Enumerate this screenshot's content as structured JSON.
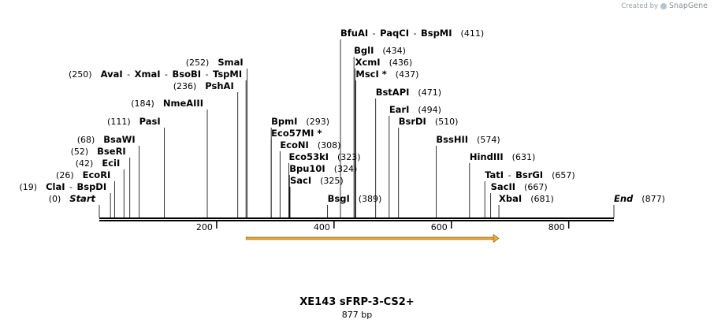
{
  "credit": {
    "prefix": "Created by",
    "brand": "SnapGene"
  },
  "sequence": {
    "name": "XE143 sFRP-3-CS2+",
    "length_label": "877 bp",
    "length": 877
  },
  "ruler": {
    "ticks": [
      200,
      400,
      600,
      800
    ]
  },
  "feature_arrow": {
    "start": 250,
    "end": 681,
    "color": "#f0a830"
  },
  "rows": [
    {
      "items": [
        {
          "name": "Start",
          "pos": 0,
          "italic": true
        }
      ],
      "pos_label": "(0)",
      "side": "left"
    },
    {
      "items": [
        {
          "name": "ClaI",
          "pos": 19
        },
        {
          "name": "BspDI",
          "pos": 19
        }
      ],
      "pos_label": "(19)",
      "side": "left"
    },
    {
      "items": [
        {
          "name": "EcoRI",
          "pos": 26
        }
      ],
      "pos_label": "(26)",
      "side": "left"
    },
    {
      "items": [
        {
          "name": "EciI",
          "pos": 42
        }
      ],
      "pos_label": "(42)",
      "side": "left"
    },
    {
      "items": [
        {
          "name": "BseRI",
          "pos": 52
        }
      ],
      "pos_label": "(52)",
      "side": "left"
    },
    {
      "items": [
        {
          "name": "BsaWI",
          "pos": 68
        }
      ],
      "pos_label": "(68)",
      "side": "left"
    },
    {
      "items": [
        {
          "name": "PasI",
          "pos": 111
        }
      ],
      "pos_label": "(111)",
      "side": "left"
    },
    {
      "items": [
        {
          "name": "NmeAIII",
          "pos": 184
        }
      ],
      "pos_label": "(184)",
      "side": "left"
    },
    {
      "items": [
        {
          "name": "PshAI",
          "pos": 236
        }
      ],
      "pos_label": "(236)",
      "side": "left"
    },
    {
      "items": [
        {
          "name": "AvaI",
          "pos": 250
        },
        {
          "name": "XmaI",
          "pos": 250
        },
        {
          "name": "BsoBI",
          "pos": 250
        },
        {
          "name": "TspMI",
          "pos": 250
        }
      ],
      "pos_label": "(250)",
      "side": "left"
    },
    {
      "items": [
        {
          "name": "SmaI",
          "pos": 252
        }
      ],
      "pos_label": "(252)",
      "side": "left"
    },
    {
      "items": [
        {
          "name": "BpmI",
          "pos": 293
        }
      ],
      "pos_label": "(293)",
      "side": "right"
    },
    {
      "items": [
        {
          "name": "Eco57MI *",
          "pos": 293
        }
      ],
      "pos_label": "",
      "side": "right"
    },
    {
      "items": [
        {
          "name": "EcoNI",
          "pos": 308
        }
      ],
      "pos_label": "(308)",
      "side": "right"
    },
    {
      "items": [
        {
          "name": "Eco53kI",
          "pos": 323
        }
      ],
      "pos_label": "(323)",
      "side": "right"
    },
    {
      "items": [
        {
          "name": "Bpu10I",
          "pos": 324
        }
      ],
      "pos_label": "(324)",
      "side": "right"
    },
    {
      "items": [
        {
          "name": "SacI",
          "pos": 325
        }
      ],
      "pos_label": "(325)",
      "side": "right"
    },
    {
      "items": [
        {
          "name": "BsgI",
          "pos": 389
        }
      ],
      "pos_label": "(389)",
      "side": "right"
    },
    {
      "items": [
        {
          "name": "BfuAI",
          "pos": 411
        },
        {
          "name": "PaqCI",
          "pos": 411
        },
        {
          "name": "BspMI",
          "pos": 411
        }
      ],
      "pos_label": "(411)",
      "side": "right"
    },
    {
      "items": [
        {
          "name": "BglI",
          "pos": 434
        }
      ],
      "pos_label": "(434)",
      "side": "right"
    },
    {
      "items": [
        {
          "name": "XcmI",
          "pos": 436
        }
      ],
      "pos_label": "(436)",
      "side": "right"
    },
    {
      "items": [
        {
          "name": "MscI *",
          "pos": 437
        }
      ],
      "pos_label": "(437)",
      "side": "right"
    },
    {
      "items": [
        {
          "name": "BstAPI",
          "pos": 471
        }
      ],
      "pos_label": "(471)",
      "side": "right"
    },
    {
      "items": [
        {
          "name": "EarI",
          "pos": 494
        }
      ],
      "pos_label": "(494)",
      "side": "right"
    },
    {
      "items": [
        {
          "name": "BsrDI",
          "pos": 510
        }
      ],
      "pos_label": "(510)",
      "side": "right"
    },
    {
      "items": [
        {
          "name": "BssHII",
          "pos": 574
        }
      ],
      "pos_label": "(574)",
      "side": "right"
    },
    {
      "items": [
        {
          "name": "HindIII",
          "pos": 631
        }
      ],
      "pos_label": "(631)",
      "side": "right"
    },
    {
      "items": [
        {
          "name": "TatI",
          "pos": 657
        },
        {
          "name": "BsrGI",
          "pos": 657
        }
      ],
      "pos_label": "(657)",
      "side": "right"
    },
    {
      "items": [
        {
          "name": "SacII",
          "pos": 667
        }
      ],
      "pos_label": "(667)",
      "side": "right"
    },
    {
      "items": [
        {
          "name": "XbaI",
          "pos": 681
        }
      ],
      "pos_label": "(681)",
      "side": "right"
    },
    {
      "items": [
        {
          "name": "End",
          "pos": 877,
          "italic": true
        }
      ],
      "pos_label": "(877)",
      "side": "right"
    }
  ]
}
